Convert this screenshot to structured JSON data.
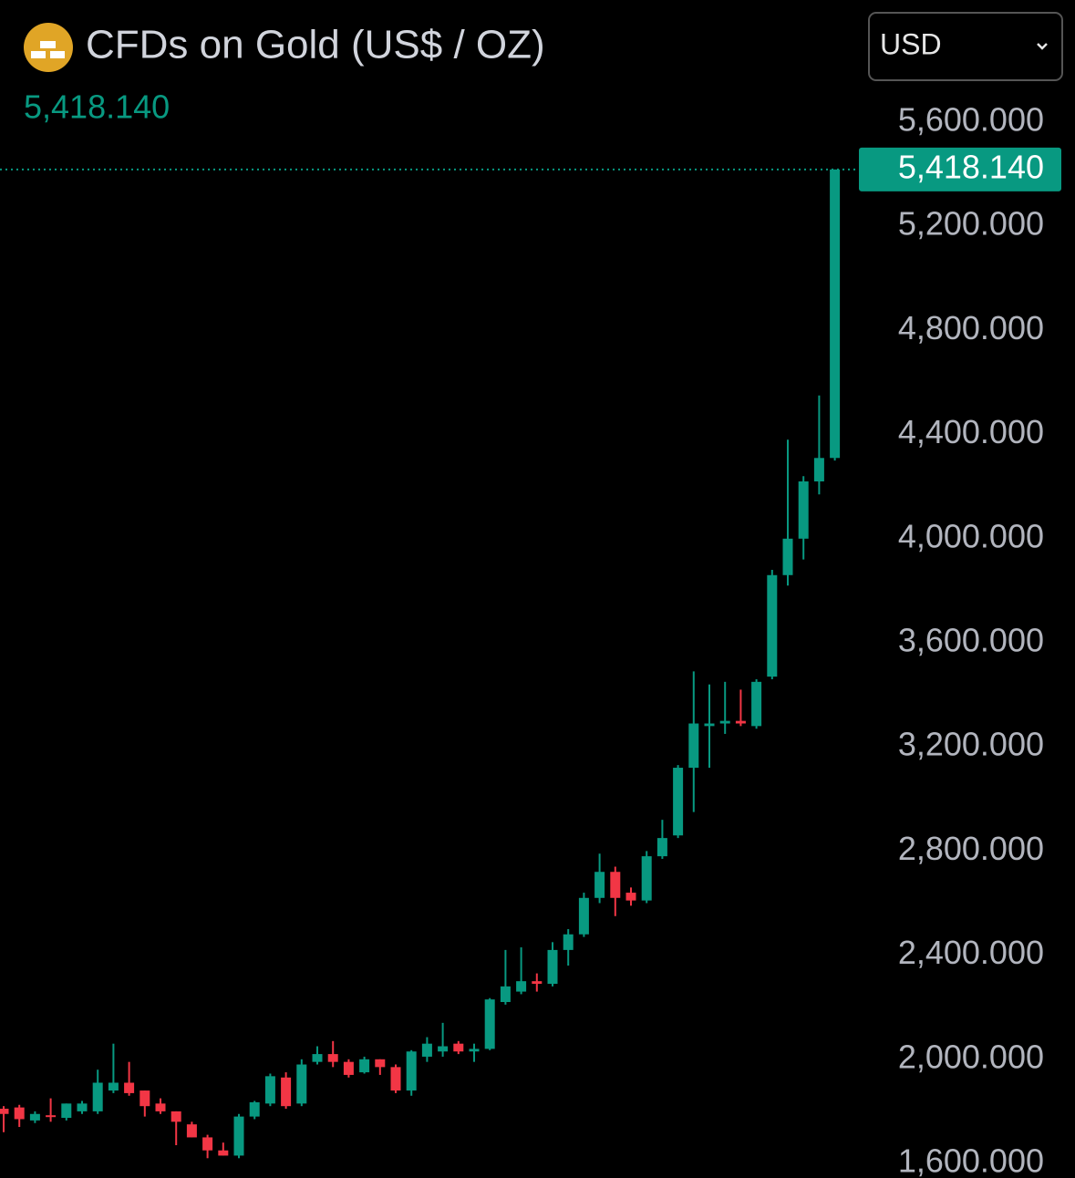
{
  "chart_data": {
    "type": "candlestick",
    "title": "CFDs on Gold (US$ / OZ)",
    "currency": "USD",
    "last_price": 5418.14,
    "last_price_label": "5,418.140",
    "up_color": "#089981",
    "down_color": "#f23645",
    "ylim": [
      1600,
      5600
    ],
    "yticks": [
      {
        "value": 1600,
        "label": "1,600.000"
      },
      {
        "value": 2000,
        "label": "2,000.000"
      },
      {
        "value": 2400,
        "label": "2,400.000"
      },
      {
        "value": 2800,
        "label": "2,800.000"
      },
      {
        "value": 3200,
        "label": "3,200.000"
      },
      {
        "value": 3600,
        "label": "3,600.000"
      },
      {
        "value": 4000,
        "label": "4,000.000"
      },
      {
        "value": 4400,
        "label": "4,400.000"
      },
      {
        "value": 4800,
        "label": "4,800.000"
      },
      {
        "value": 5200,
        "label": "5,200.000"
      },
      {
        "value": 5600,
        "label": "5,600.000"
      }
    ],
    "open": [
      1810,
      1815,
      1765,
      1785,
      1775,
      1800,
      1800,
      1880,
      1910,
      1880,
      1830,
      1800,
      1750,
      1700,
      1650,
      1630,
      1780,
      1830,
      1930,
      1830,
      1990,
      2020,
      1990,
      1950,
      2000,
      1970,
      1880,
      2010,
      2030,
      2060,
      2030,
      2040,
      2220,
      2260,
      2300,
      2290,
      2420,
      2480,
      2620,
      2720,
      2640,
      2610,
      2780,
      2860,
      3120,
      3280,
      3290,
      3300,
      3280,
      3470,
      3860,
      4000,
      4220,
      4310
    ],
    "high": [
      1820,
      1825,
      1800,
      1850,
      1830,
      1840,
      1960,
      2060,
      1990,
      1880,
      1850,
      1800,
      1760,
      1710,
      1680,
      1790,
      1840,
      1945,
      1950,
      2000,
      2050,
      2070,
      2000,
      2010,
      2000,
      1980,
      2035,
      2085,
      2140,
      2070,
      2060,
      2235,
      2420,
      2430,
      2330,
      2450,
      2500,
      2640,
      2790,
      2740,
      2660,
      2800,
      2920,
      3130,
      3490,
      3440,
      3450,
      3420,
      3460,
      3880,
      4380,
      4240,
      4550,
      5418.14
    ],
    "low": [
      1720,
      1740,
      1755,
      1760,
      1765,
      1790,
      1790,
      1870,
      1860,
      1780,
      1790,
      1670,
      1700,
      1620,
      1630,
      1620,
      1770,
      1820,
      1810,
      1820,
      1980,
      1970,
      1930,
      1945,
      1940,
      1870,
      1860,
      1990,
      2010,
      2020,
      1990,
      2035,
      2210,
      2250,
      2260,
      2280,
      2360,
      2470,
      2600,
      2550,
      2590,
      2600,
      2770,
      2850,
      2950,
      3120,
      3250,
      3280,
      3270,
      3460,
      3820,
      3920,
      4170,
      4300
    ],
    "close": [
      1790,
      1770,
      1790,
      1780,
      1830,
      1830,
      1910,
      1910,
      1870,
      1820,
      1800,
      1760,
      1700,
      1650,
      1630,
      1780,
      1835,
      1935,
      1820,
      1980,
      2020,
      1990,
      1940,
      2000,
      1970,
      1880,
      2030,
      2060,
      2050,
      2030,
      2040,
      2230,
      2280,
      2300,
      2290,
      2420,
      2480,
      2620,
      2720,
      2620,
      2610,
      2780,
      2850,
      3120,
      3290,
      3290,
      3300,
      3290,
      3450,
      3860,
      4000,
      4220,
      4310,
      5418.14
    ]
  }
}
